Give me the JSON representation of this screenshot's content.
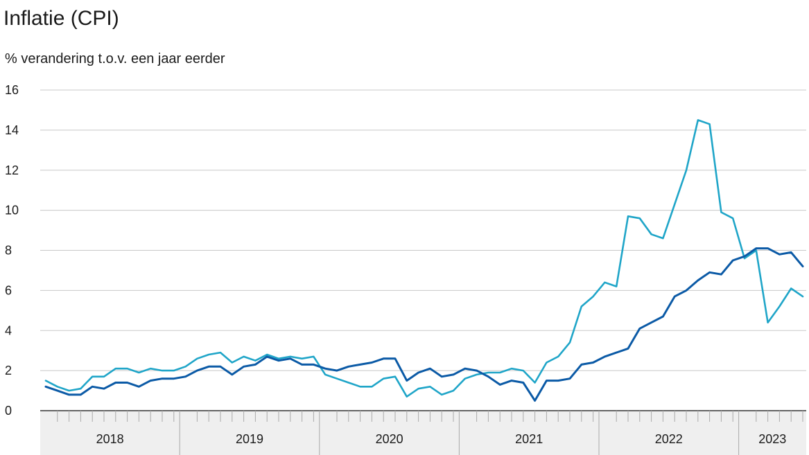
{
  "chart_data": {
    "type": "line",
    "title": "Inflatie (CPI)",
    "subtitle": "% verandering t.o.v. een jaar eerder",
    "xlabel": "",
    "ylabel": "",
    "ylim": [
      0,
      16
    ],
    "y_ticks": [
      "0",
      "2",
      "4",
      "6",
      "8",
      "10",
      "12",
      "14",
      "16"
    ],
    "x_start": "2018-01",
    "years": [
      "2018",
      "2019",
      "2020",
      "2021",
      "2022",
      "2023"
    ],
    "grid": true,
    "colors": {
      "series_dark": "#0b5aa6",
      "series_light": "#1fa5c8",
      "grid": "#c8c8c8",
      "axis_band": "#efefef"
    },
    "series": [
      {
        "values": [
          1.2,
          1.0,
          0.8,
          0.8,
          1.2,
          1.1,
          1.4,
          1.4,
          1.2,
          1.5,
          1.6,
          1.6,
          1.7,
          2.0,
          2.2,
          2.2,
          1.8,
          2.2,
          2.3,
          2.7,
          2.5,
          2.6,
          2.3,
          2.3,
          2.1,
          2.0,
          2.2,
          2.3,
          2.4,
          2.6,
          2.6,
          1.5,
          1.9,
          2.1,
          1.7,
          1.8,
          2.1,
          2.0,
          1.7,
          1.3,
          1.5,
          1.4,
          0.5,
          1.5,
          1.5,
          1.6,
          2.3,
          2.4,
          2.7,
          2.9,
          3.1,
          4.1,
          4.4,
          4.7,
          5.7,
          6.0,
          6.5,
          6.9,
          6.8,
          7.5,
          7.7,
          8.1,
          8.1,
          7.8,
          7.9,
          7.2
        ]
      },
      {
        "values": [
          1.5,
          1.2,
          1.0,
          1.1,
          1.7,
          1.7,
          2.1,
          2.1,
          1.9,
          2.1,
          2.0,
          2.0,
          2.2,
          2.6,
          2.8,
          2.9,
          2.4,
          2.7,
          2.5,
          2.8,
          2.6,
          2.7,
          2.6,
          2.7,
          1.8,
          1.6,
          1.4,
          1.2,
          1.2,
          1.6,
          1.7,
          0.7,
          1.1,
          1.2,
          0.8,
          1.0,
          1.6,
          1.8,
          1.9,
          1.9,
          2.1,
          2.0,
          1.4,
          2.4,
          2.7,
          3.4,
          5.2,
          5.7,
          6.4,
          6.2,
          9.7,
          9.6,
          8.8,
          8.6,
          10.3,
          12.0,
          14.5,
          14.3,
          9.9,
          9.6,
          7.6,
          8.0,
          4.4,
          5.2,
          6.1,
          5.7
        ]
      }
    ]
  }
}
